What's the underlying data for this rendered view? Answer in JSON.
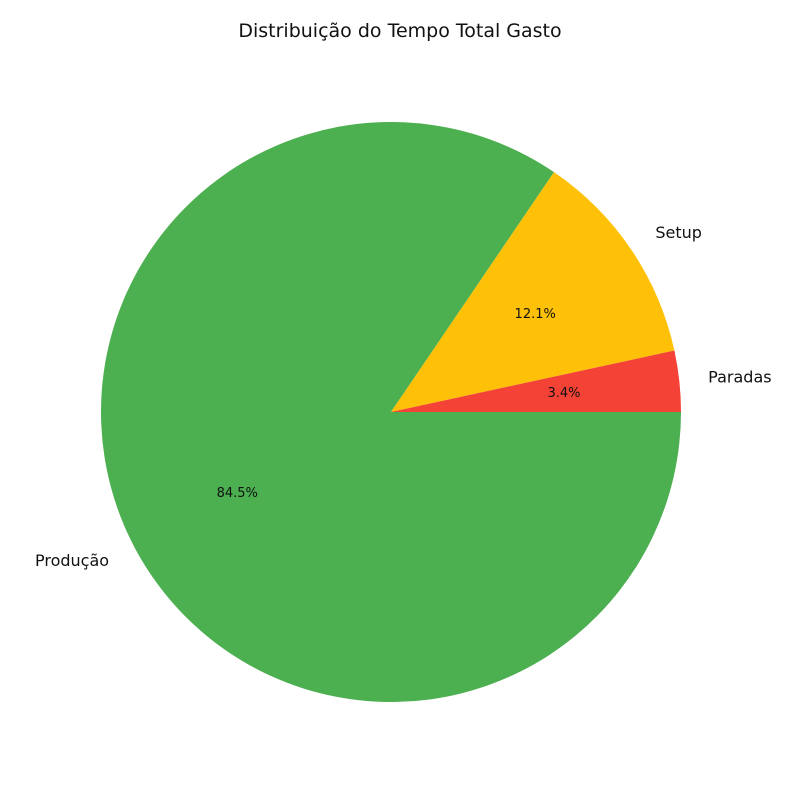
{
  "chart_data": {
    "type": "pie",
    "title": "Distribuição do Tempo Total Gasto",
    "slices": [
      {
        "label": "Produção",
        "value": 84.5,
        "pct_label": "84.5%",
        "color": "#4caf50"
      },
      {
        "label": "Setup",
        "value": 12.1,
        "pct_label": "12.1%",
        "color": "#ffc107"
      },
      {
        "label": "Paradas",
        "value": 3.4,
        "pct_label": "3.4%",
        "color": "#f44336"
      }
    ],
    "start_angle_deg": 0,
    "direction": "clockwise",
    "legend": "none"
  }
}
